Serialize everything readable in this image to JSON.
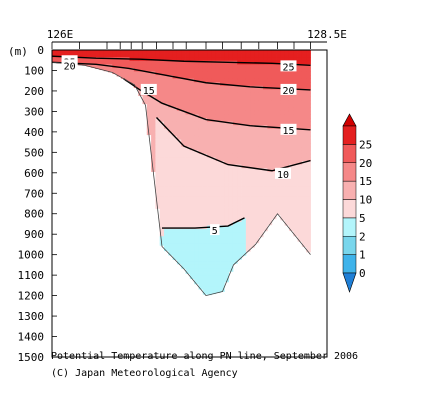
{
  "chart_data": {
    "type": "contour-section",
    "title": "Potential Temperature along PN line, September 2006",
    "credit": "(C) Japan Meteorological Agency",
    "x_labels": [
      "126E",
      "128.5E"
    ],
    "x_range": [
      126,
      128.5
    ],
    "y_unit_label": "(m)",
    "y_ticks": [
      0,
      100,
      200,
      300,
      400,
      500,
      600,
      700,
      800,
      900,
      1000,
      1100,
      1200,
      1300,
      1400,
      1500
    ],
    "ylim": [
      0,
      1500
    ],
    "y_inverted": true,
    "station_longitudes": [
      126.0,
      126.25,
      126.5,
      126.62,
      126.72,
      126.82,
      126.95,
      127.1,
      127.22,
      127.4,
      127.55,
      127.72,
      127.88,
      128.05,
      128.2,
      128.35
    ],
    "bottom_topography": [
      {
        "lon": 126.0,
        "depth": 60
      },
      {
        "lon": 126.3,
        "depth": 75
      },
      {
        "lon": 126.55,
        "depth": 110
      },
      {
        "lon": 126.75,
        "depth": 170
      },
      {
        "lon": 126.85,
        "depth": 270
      },
      {
        "lon": 127.0,
        "depth": 960
      },
      {
        "lon": 127.2,
        "depth": 1070
      },
      {
        "lon": 127.4,
        "depth": 1200
      },
      {
        "lon": 127.55,
        "depth": 1180
      },
      {
        "lon": 127.65,
        "depth": 1050
      },
      {
        "lon": 127.85,
        "depth": 950
      },
      {
        "lon": 128.05,
        "depth": 800
      },
      {
        "lon": 128.35,
        "depth": 1000
      }
    ],
    "colorbar": {
      "levels": [
        0,
        1,
        2,
        5,
        10,
        15,
        20,
        25
      ],
      "colors": [
        "#3fb3ea",
        "#79d6ec",
        "#b3f5fb",
        "#fcd9d9",
        "#f8b0b0",
        "#f58888",
        "#f05a5a",
        "#e41f1f"
      ],
      "under_color": "#1f7fd6",
      "over_color": "#d00000"
    },
    "contour_labels": [
      {
        "text": "25",
        "lon": 126.16,
        "depth": 55
      },
      {
        "text": "20",
        "lon": 126.16,
        "depth": 75
      },
      {
        "text": "25",
        "lon": 128.15,
        "depth": 80
      },
      {
        "text": "20",
        "lon": 128.15,
        "depth": 195
      },
      {
        "text": "15",
        "lon": 126.88,
        "depth": 195
      },
      {
        "text": "15",
        "lon": 128.15,
        "depth": 390
      },
      {
        "text": "10",
        "lon": 128.1,
        "depth": 605
      },
      {
        "text": "5",
        "lon": 127.48,
        "depth": 880
      }
    ],
    "isotherms": [
      {
        "value": 25,
        "points": [
          [
            126.0,
            30
          ],
          [
            126.4,
            40
          ],
          [
            126.8,
            45
          ],
          [
            127.2,
            55
          ],
          [
            127.6,
            60
          ],
          [
            128.0,
            65
          ],
          [
            128.35,
            75
          ]
        ]
      },
      {
        "value": 20,
        "points": [
          [
            126.0,
            65
          ],
          [
            126.4,
            70
          ],
          [
            126.7,
            90
          ],
          [
            127.0,
            120
          ],
          [
            127.4,
            160
          ],
          [
            127.8,
            180
          ],
          [
            128.35,
            195
          ]
        ]
      },
      {
        "value": 15,
        "points": [
          [
            126.65,
            175
          ],
          [
            126.8,
            195
          ],
          [
            127.0,
            260
          ],
          [
            127.4,
            340
          ],
          [
            127.8,
            370
          ],
          [
            128.35,
            390
          ]
        ]
      },
      {
        "value": 10,
        "points": [
          [
            126.95,
            330
          ],
          [
            127.2,
            470
          ],
          [
            127.6,
            560
          ],
          [
            128.0,
            590
          ],
          [
            128.35,
            540
          ]
        ]
      },
      {
        "value": 5,
        "points": [
          [
            127.0,
            870
          ],
          [
            127.3,
            870
          ],
          [
            127.6,
            860
          ],
          [
            127.75,
            820
          ]
        ]
      }
    ]
  }
}
